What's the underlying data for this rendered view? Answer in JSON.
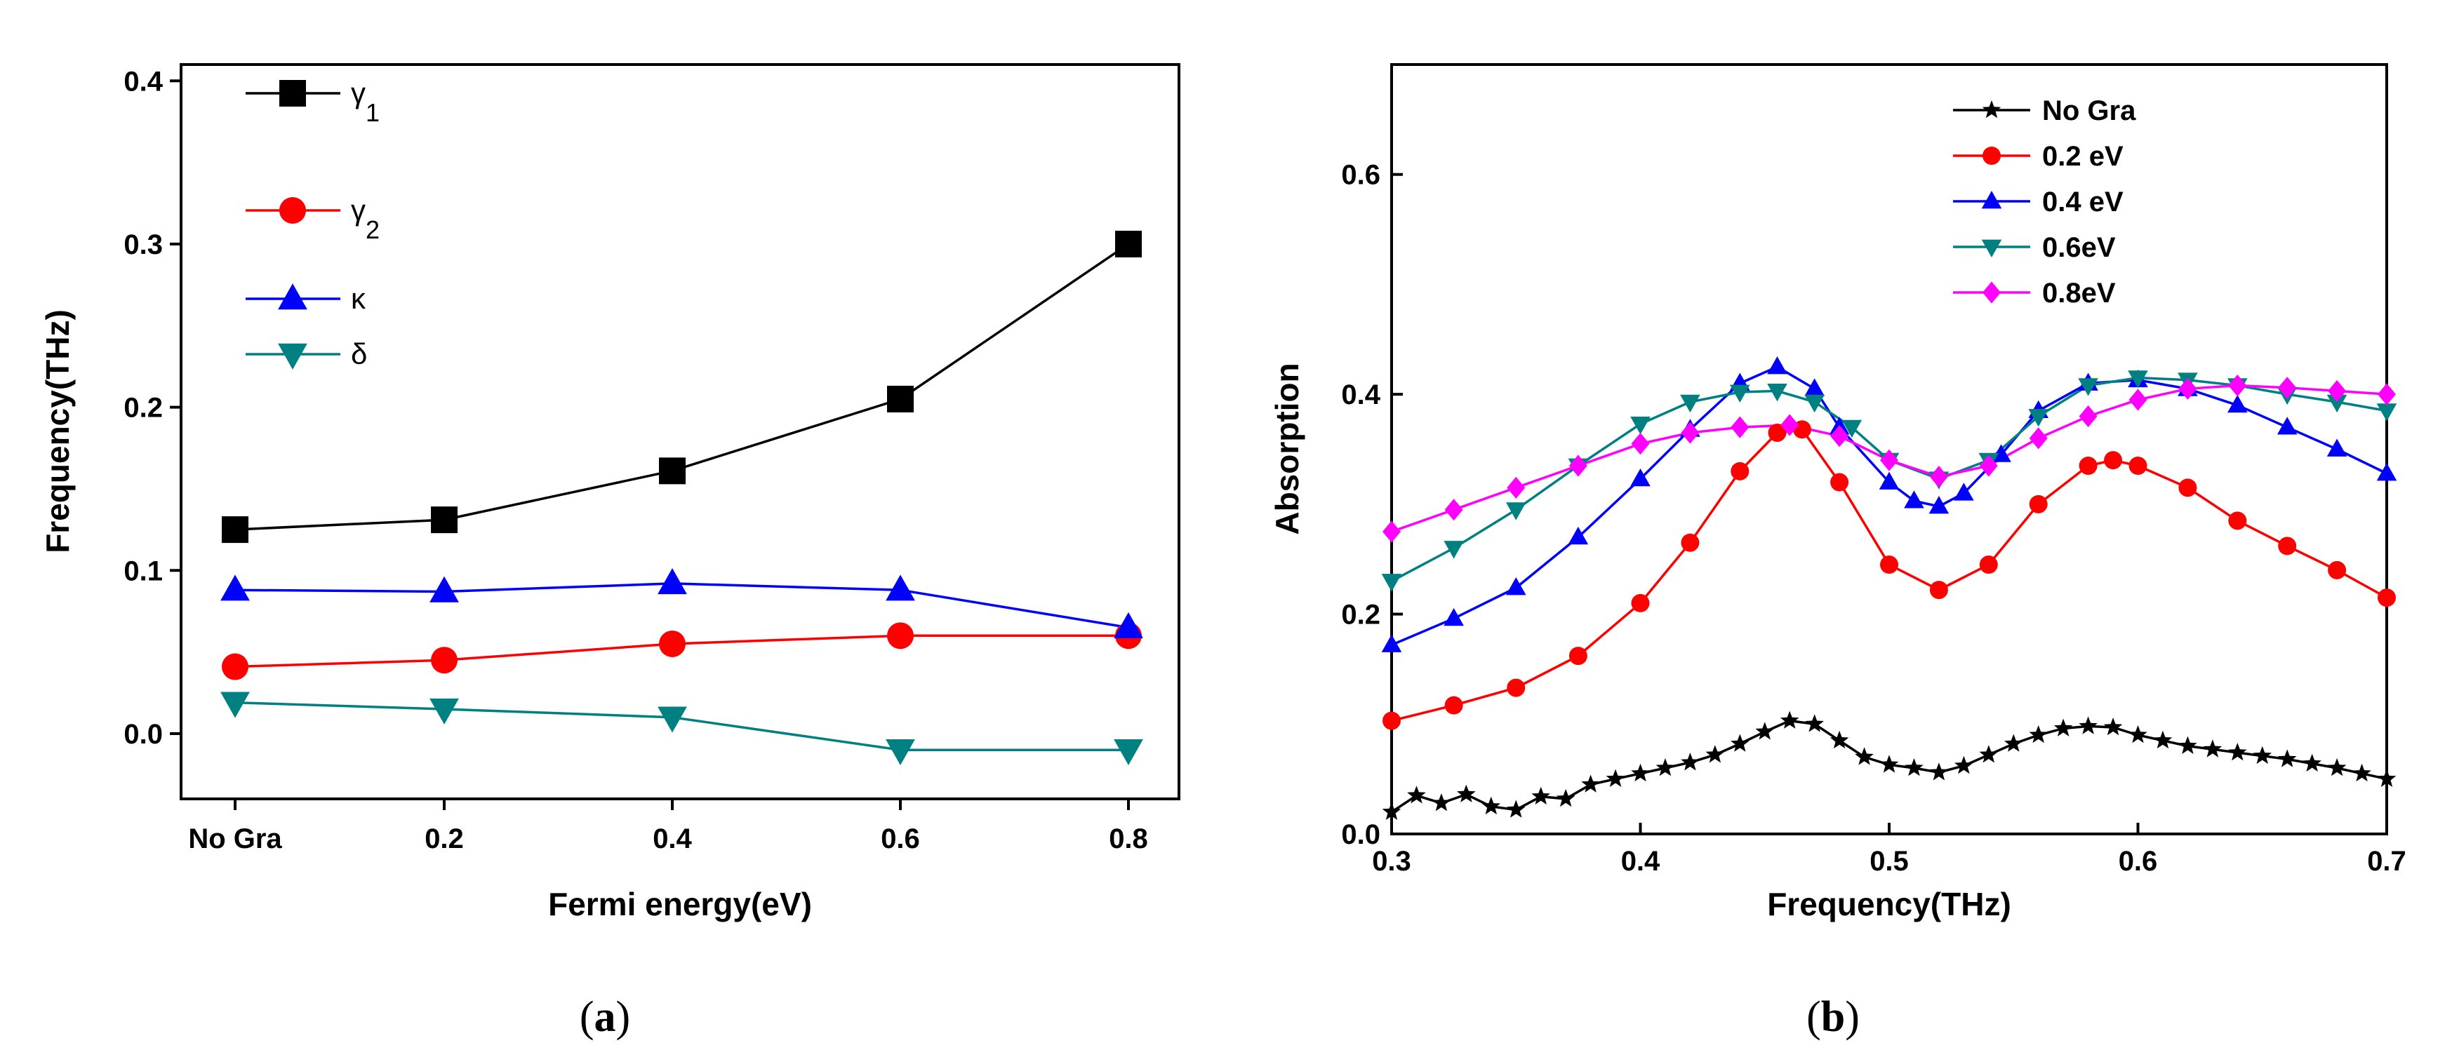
{
  "panels": {
    "a_label": "(a)",
    "b_label": "(b)",
    "a_label_letter": "a",
    "b_label_letter": "b"
  },
  "chart_data": [
    {
      "id": "a",
      "type": "line",
      "xlabel": "Fermi energy(eV)",
      "ylabel": "Frequency(THz)",
      "categories": [
        "No Gra",
        "0.2",
        "0.4",
        "0.6",
        "0.8"
      ],
      "ylim": [
        -0.04,
        0.41
      ],
      "yticks": [
        "0.0",
        "0.1",
        "0.2",
        "0.3",
        "0.4"
      ],
      "ytick_values": [
        0,
        0.1,
        0.2,
        0.3,
        0.4
      ],
      "legend_position": "top-left",
      "series": [
        {
          "name": "γ1",
          "label_main": "γ",
          "label_sub": "1",
          "color": "#000000",
          "marker": "square",
          "values": [
            0.125,
            0.131,
            0.161,
            0.205,
            0.3
          ]
        },
        {
          "name": "γ2",
          "label_main": "γ",
          "label_sub": "2",
          "color": "#ff0000",
          "marker": "circle",
          "values": [
            0.041,
            0.045,
            0.055,
            0.06,
            0.06
          ]
        },
        {
          "name": "κ",
          "label_main": "κ",
          "label_sub": "",
          "color": "#0000ff",
          "marker": "triangle-up",
          "values": [
            0.088,
            0.087,
            0.092,
            0.088,
            0.065
          ]
        },
        {
          "name": "δ",
          "label_main": "δ",
          "label_sub": "",
          "color": "#008080",
          "marker": "triangle-down",
          "values": [
            0.019,
            0.015,
            0.01,
            -0.01,
            -0.01
          ]
        }
      ]
    },
    {
      "id": "b",
      "type": "line",
      "xlabel": "Frequency(THz)",
      "ylabel": "Absorption",
      "xlim": [
        0.3,
        0.7
      ],
      "xticks": [
        "0.3",
        "0.4",
        "0.5",
        "0.6",
        "0.7"
      ],
      "xtick_values": [
        0.3,
        0.4,
        0.5,
        0.6,
        0.7
      ],
      "ylim": [
        0,
        0.7
      ],
      "yticks": [
        "0.0",
        "0.2",
        "0.4",
        "0.6"
      ],
      "ytick_values": [
        0,
        0.2,
        0.4,
        0.6
      ],
      "legend_position": "top-right",
      "series": [
        {
          "name": "No Gra",
          "color": "#000000",
          "marker": "star",
          "x": [
            0.3,
            0.31,
            0.32,
            0.33,
            0.34,
            0.35,
            0.36,
            0.37,
            0.38,
            0.39,
            0.4,
            0.41,
            0.42,
            0.43,
            0.44,
            0.45,
            0.46,
            0.47,
            0.48,
            0.49,
            0.5,
            0.51,
            0.52,
            0.53,
            0.54,
            0.55,
            0.56,
            0.57,
            0.58,
            0.59,
            0.6,
            0.61,
            0.62,
            0.63,
            0.64,
            0.65,
            0.66,
            0.67,
            0.68,
            0.69,
            0.7
          ],
          "y": [
            0.02,
            0.035,
            0.028,
            0.036,
            0.025,
            0.022,
            0.034,
            0.032,
            0.045,
            0.05,
            0.055,
            0.06,
            0.065,
            0.072,
            0.082,
            0.093,
            0.103,
            0.1,
            0.085,
            0.07,
            0.063,
            0.06,
            0.056,
            0.062,
            0.072,
            0.082,
            0.09,
            0.096,
            0.098,
            0.097,
            0.09,
            0.085,
            0.08,
            0.077,
            0.074,
            0.071,
            0.068,
            0.064,
            0.06,
            0.055,
            0.05
          ]
        },
        {
          "name": "0.2 eV",
          "color": "#ff0000",
          "marker": "circle",
          "x": [
            0.3,
            0.325,
            0.35,
            0.375,
            0.4,
            0.42,
            0.44,
            0.455,
            0.465,
            0.48,
            0.5,
            0.52,
            0.54,
            0.56,
            0.58,
            0.59,
            0.6,
            0.62,
            0.64,
            0.66,
            0.68,
            0.7
          ],
          "y": [
            0.103,
            0.117,
            0.133,
            0.162,
            0.21,
            0.265,
            0.33,
            0.365,
            0.368,
            0.32,
            0.245,
            0.222,
            0.245,
            0.3,
            0.335,
            0.34,
            0.335,
            0.315,
            0.285,
            0.262,
            0.24,
            0.215
          ]
        },
        {
          "name": "0.4 eV",
          "color": "#0000ff",
          "marker": "triangle-up",
          "x": [
            0.3,
            0.325,
            0.35,
            0.375,
            0.4,
            0.42,
            0.44,
            0.455,
            0.47,
            0.48,
            0.5,
            0.51,
            0.52,
            0.53,
            0.545,
            0.56,
            0.58,
            0.6,
            0.62,
            0.64,
            0.66,
            0.68,
            0.7
          ],
          "y": [
            0.172,
            0.196,
            0.224,
            0.27,
            0.323,
            0.368,
            0.41,
            0.425,
            0.405,
            0.37,
            0.32,
            0.303,
            0.298,
            0.31,
            0.345,
            0.385,
            0.41,
            0.413,
            0.405,
            0.39,
            0.37,
            0.35,
            0.328
          ]
        },
        {
          "name": "0.6eV",
          "color": "#008080",
          "marker": "triangle-down",
          "x": [
            0.3,
            0.325,
            0.35,
            0.375,
            0.4,
            0.42,
            0.44,
            0.455,
            0.47,
            0.485,
            0.5,
            0.52,
            0.54,
            0.56,
            0.58,
            0.6,
            0.62,
            0.64,
            0.66,
            0.68,
            0.7
          ],
          "y": [
            0.23,
            0.26,
            0.295,
            0.335,
            0.373,
            0.393,
            0.402,
            0.403,
            0.393,
            0.37,
            0.34,
            0.323,
            0.34,
            0.38,
            0.408,
            0.415,
            0.413,
            0.408,
            0.4,
            0.393,
            0.385
          ]
        },
        {
          "name": "0.8eV",
          "color": "#ff00ff",
          "marker": "diamond",
          "x": [
            0.3,
            0.325,
            0.35,
            0.375,
            0.4,
            0.42,
            0.44,
            0.46,
            0.48,
            0.5,
            0.52,
            0.54,
            0.56,
            0.58,
            0.6,
            0.62,
            0.64,
            0.66,
            0.68,
            0.7
          ],
          "y": [
            0.275,
            0.295,
            0.315,
            0.335,
            0.355,
            0.365,
            0.37,
            0.372,
            0.362,
            0.34,
            0.325,
            0.335,
            0.36,
            0.38,
            0.395,
            0.405,
            0.408,
            0.406,
            0.403,
            0.4
          ]
        }
      ]
    }
  ]
}
